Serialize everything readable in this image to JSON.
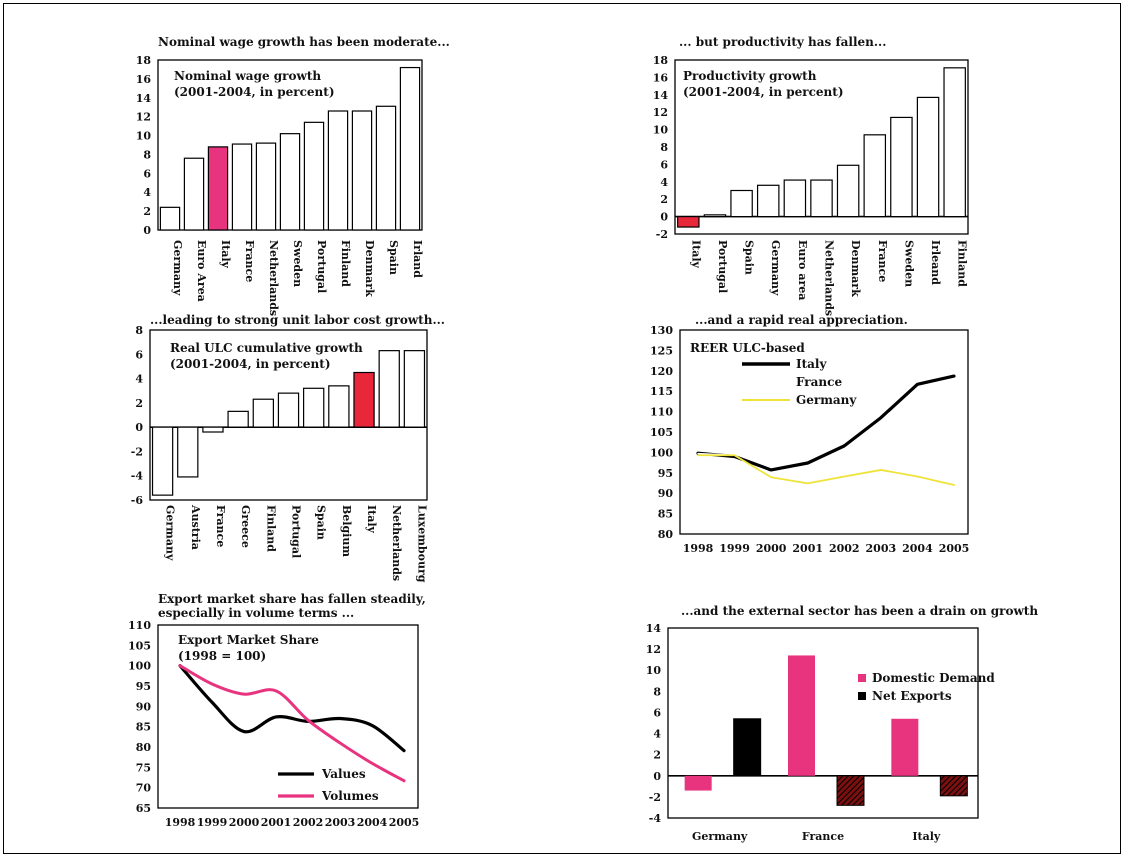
{
  "colors": {
    "highlight_pink": "#e8337f",
    "highlight_red": "#e8283a",
    "france_line": "#ffffff",
    "germany_line": "#efe33a",
    "values_line": "#000000",
    "volumes_line": "#e8337f",
    "net_exports_dark": "#7a1010"
  },
  "charts": [
    {
      "heading": "Nominal wage growth has been moderate...",
      "chart_data": {
        "type": "bar",
        "title": "Nominal wage growth",
        "subtitle": "(2001-2004, in percent)",
        "categories": [
          "Germany",
          "Euro Area",
          "Italy",
          "France",
          "Netherlands",
          "Sweden",
          "Portugal",
          "Finland",
          "Denmark",
          "Spain",
          "Irland"
        ],
        "values": [
          2.4,
          7.6,
          8.8,
          9.1,
          9.2,
          10.2,
          11.4,
          12.6,
          12.6,
          13.1,
          17.2
        ],
        "highlight": "Italy",
        "highlight_color": "#e8337f",
        "ylim": [
          0,
          18
        ],
        "yticks": [
          0,
          2,
          4,
          6,
          8,
          10,
          12,
          14,
          16,
          18
        ],
        "ytick_labels": [
          "0",
          "2",
          "4",
          "6",
          "8",
          "10",
          "12",
          "14",
          "16",
          "18"
        ],
        "grid": false
      }
    },
    {
      "heading": "... but productivity has fallen...",
      "chart_data": {
        "type": "bar",
        "title": "Productivity growth",
        "subtitle": "(2001-2004, in percent)",
        "categories": [
          "Italy",
          "Portugal",
          "Spain",
          "Germany",
          "Euro area",
          "Netherlands",
          "Denmark",
          "France",
          "Sweden",
          "Irleand",
          "Finland"
        ],
        "values": [
          -1.2,
          0.2,
          3.0,
          3.6,
          4.2,
          4.2,
          5.9,
          9.4,
          11.4,
          13.7,
          17.1
        ],
        "highlight": "Italy",
        "highlight_color": "#e8283a",
        "ylim": [
          -2,
          18
        ],
        "yticks": [
          -2,
          0,
          2,
          4,
          6,
          8,
          10,
          12,
          14,
          16,
          18
        ],
        "ytick_labels": [
          "-2",
          "0",
          "2",
          "4",
          "6",
          "8",
          "10",
          "12",
          "14",
          "16",
          "18"
        ],
        "grid": false
      }
    },
    {
      "heading": "...leading to strong unit labor cost growth...",
      "chart_data": {
        "type": "bar",
        "title": "Real ULC cumulative growth",
        "subtitle": "(2001-2004, in percent)",
        "categories": [
          "Germany",
          "Austria",
          "France",
          "Greece",
          "Finland",
          "Portugal",
          "Spain",
          "Belgium",
          "Italy",
          "Netherlands",
          "Luxembourg"
        ],
        "values": [
          -5.6,
          -4.1,
          -0.4,
          1.3,
          2.3,
          2.8,
          3.2,
          3.4,
          4.5,
          6.3,
          6.3
        ],
        "highlight": "Italy",
        "highlight_color": "#e8283a",
        "ylim": [
          -6,
          8
        ],
        "yticks": [
          -6,
          -4,
          -2,
          0,
          2,
          4,
          6,
          8
        ],
        "ytick_labels": [
          "-6",
          "-4",
          "-2",
          "0",
          "2",
          "4",
          "6",
          "8"
        ],
        "grid": false
      }
    },
    {
      "heading": "...and a rapid real appreciation.",
      "chart_data": {
        "type": "line",
        "title": "REER ULC-based",
        "x": [
          "1998",
          "1999",
          "2000",
          "2001",
          "2002",
          "2003",
          "2004",
          "2005"
        ],
        "series": [
          {
            "name": "Italy",
            "color": "#000000",
            "values": [
              99.8,
              99.0,
              95.7,
              97.4,
              101.6,
              108.5,
              116.7,
              118.7
            ]
          },
          {
            "name": "France",
            "color": "#ffffff",
            "values": [
              99.7,
              99.3,
              93.9,
              92.8,
              94.4,
              95.9,
              94.3,
              92.2
            ]
          },
          {
            "name": "Germany",
            "color": "#efe33a",
            "values": [
              99.3,
              99.3,
              93.9,
              92.4,
              94.1,
              95.7,
              94.1,
              92.0
            ]
          }
        ],
        "ylim": [
          80,
          130
        ],
        "yticks": [
          80,
          85,
          90,
          95,
          100,
          105,
          110,
          115,
          120,
          125,
          130
        ],
        "ytick_labels": [
          "80",
          "85",
          "90",
          "95",
          "100",
          "105",
          "110",
          "115",
          "120",
          "125",
          "130"
        ],
        "grid": false
      }
    },
    {
      "heading": "Export market share has fallen steadily, especially in volume terms ...",
      "chart_data": {
        "type": "line",
        "title": "Export Market Share",
        "subtitle": "(1998 = 100)",
        "x": [
          "1998",
          "1999",
          "2000",
          "2001",
          "2002",
          "2003",
          "2004",
          "2005"
        ],
        "series": [
          {
            "name": "Values",
            "color": "#000000",
            "values": [
              100.0,
              91.0,
              83.8,
              87.4,
              86.3,
              87.0,
              85.3,
              79.1
            ]
          },
          {
            "name": "Volumes",
            "color": "#e8337f",
            "values": [
              100.0,
              95.5,
              93.0,
              93.8,
              86.6,
              81.0,
              76.0,
              71.7
            ]
          }
        ],
        "ylim": [
          65,
          110
        ],
        "yticks": [
          65,
          70,
          75,
          80,
          85,
          90,
          95,
          100,
          105,
          110
        ],
        "ytick_labels": [
          "65",
          "70",
          "75",
          "80",
          "85",
          "90",
          "95",
          "100",
          "105",
          "110"
        ],
        "grid": false
      }
    },
    {
      "heading": "...and the external sector has been a drain on growth",
      "chart_data": {
        "type": "bar",
        "categories": [
          "Germany",
          "France",
          "Italy"
        ],
        "series": [
          {
            "name": "Domestic Demand",
            "color": "#e8337f",
            "values": [
              -1.4,
              11.4,
              5.4
            ]
          },
          {
            "name": "Net Exports",
            "color": "#000000",
            "values": [
              5.4,
              -2.8,
              -1.9
            ]
          }
        ],
        "ylim": [
          -4,
          14
        ],
        "yticks": [
          -4,
          -2,
          0,
          2,
          4,
          6,
          8,
          10,
          12,
          14
        ],
        "ytick_labels": [
          "-4",
          "-2",
          "0",
          "2",
          "4",
          "6",
          "8",
          "10",
          "12",
          "14"
        ],
        "grid": false
      }
    }
  ]
}
